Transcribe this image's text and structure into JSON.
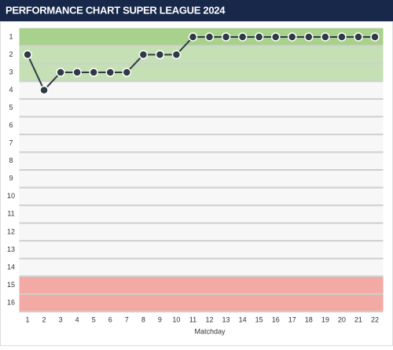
{
  "chart_data": {
    "type": "line",
    "title": "PERFORMANCE CHART SUPER LEAGUE 2024",
    "x_label": "Matchday",
    "x": [
      1,
      2,
      3,
      4,
      5,
      6,
      7,
      8,
      9,
      10,
      11,
      12,
      13,
      14,
      15,
      16,
      17,
      18,
      19,
      20,
      21,
      22
    ],
    "xlim": [
      0.5,
      22.5
    ],
    "xticks": [
      1,
      2,
      3,
      4,
      5,
      6,
      7,
      8,
      9,
      10,
      11,
      12,
      13,
      14,
      15,
      16,
      17,
      18,
      19,
      20,
      21,
      22
    ],
    "series": [
      {
        "color": "#2f3b44",
        "values": [
          2,
          4,
          3,
          3,
          3,
          3,
          3,
          2,
          2,
          2,
          1,
          1,
          1,
          1,
          1,
          1,
          1,
          1,
          1,
          1,
          1,
          1
        ]
      }
    ],
    "ylim": [
      0.5,
      16.5
    ],
    "y_inverted": true,
    "yticks": [
      1,
      2,
      3,
      4,
      5,
      6,
      7,
      8,
      9,
      10,
      11,
      12,
      13,
      14,
      15,
      16
    ],
    "zones": [
      {
        "from": 1,
        "to": 1,
        "color": "#a9d18e"
      },
      {
        "from": 2,
        "to": 3,
        "color": "#c5e0b4"
      },
      {
        "from": 4,
        "to": 14,
        "color": "#f7f7f7"
      },
      {
        "from": 15,
        "to": 16,
        "color": "#f4aaa4"
      }
    ],
    "grid": true
  }
}
